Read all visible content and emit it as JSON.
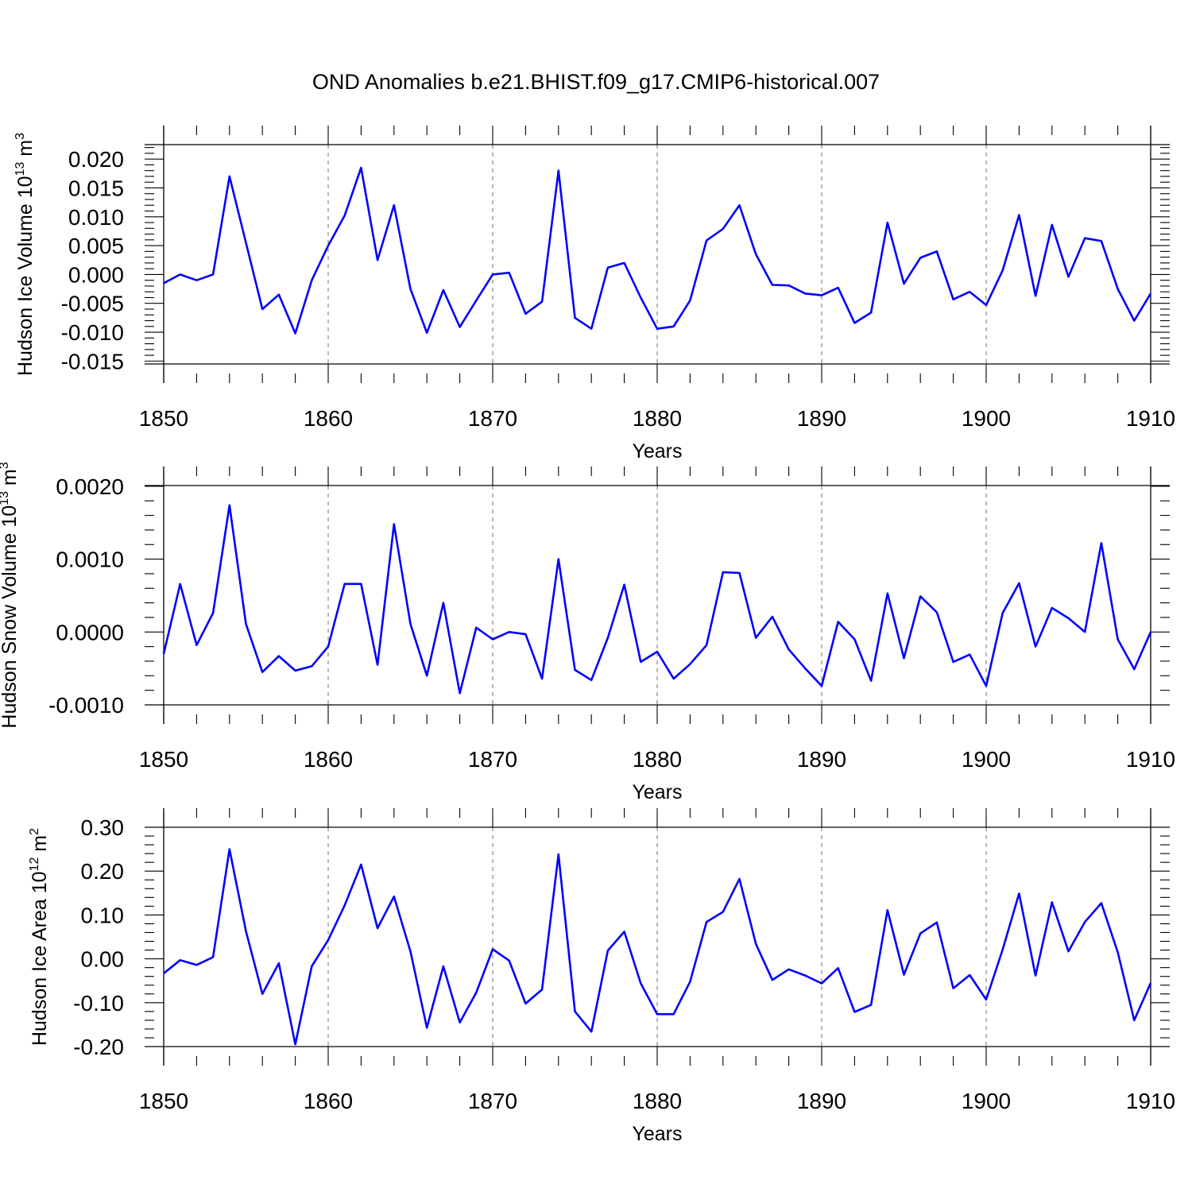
{
  "figure": {
    "title": "OND Anomalies b.e21.BHIST.f09_g17.CMIP6-historical.007",
    "line_color": "#0000ff",
    "grid_color": "#888888"
  },
  "chart_data": [
    {
      "type": "line",
      "title": "",
      "xlabel": "Years",
      "ylabel_main": "Hudson Ice Volume 10",
      "ylabel_sup": "13",
      "ylabel_unit": " m",
      "ylabel_unit_sup": "3",
      "xlim": [
        1850,
        1910
      ],
      "ylim": [
        -0.0155,
        0.0225
      ],
      "x_ticks": [
        1850,
        1860,
        1870,
        1880,
        1890,
        1900,
        1910
      ],
      "x_tick_labels": [
        "1850",
        "1860",
        "1870",
        "1880",
        "1890",
        "1900",
        "1910"
      ],
      "y_ticks": [
        0.02,
        0.015,
        0.01,
        0.005,
        0.0,
        -0.005,
        -0.01,
        -0.015
      ],
      "y_tick_labels": [
        "0.020",
        "0.015",
        "0.010",
        "0.005",
        "0.000",
        "-0.005",
        "-0.010",
        "-0.015"
      ],
      "grid": "vertical dashed at major x ticks",
      "series": [
        {
          "x_start": 1850,
          "values": [
            -0.0015,
            0.0,
            -0.001,
            0.0,
            0.017,
            0.0055,
            -0.006,
            -0.0035,
            -0.0102,
            -0.001,
            0.005,
            0.0102,
            0.0185,
            0.0025,
            0.012,
            -0.0025,
            -0.0101,
            -0.0027,
            -0.0091,
            -0.0045,
            0.0,
            0.0003,
            -0.0068,
            -0.0047,
            0.018,
            -0.0075,
            -0.0094,
            0.0012,
            0.002,
            -0.004,
            -0.0094,
            -0.009,
            -0.0045,
            0.0059,
            0.0079,
            0.012,
            0.0035,
            -0.0018,
            -0.0019,
            -0.0033,
            -0.0036,
            -0.0023,
            -0.0084,
            -0.0066,
            0.009,
            -0.0016,
            0.0029,
            0.004,
            -0.0043,
            -0.003,
            -0.0053,
            0.0007,
            0.0103,
            -0.0037,
            0.0086,
            -0.0004,
            0.0063,
            0.0058,
            -0.0025,
            -0.008,
            -0.0033
          ]
        }
      ]
    },
    {
      "type": "line",
      "title": "",
      "xlabel": "Years",
      "ylabel_main": "Hudson Snow Volume 10",
      "ylabel_sup": "13",
      "ylabel_unit": " m",
      "ylabel_unit_sup": "3",
      "xlim": [
        1850,
        1910
      ],
      "ylim": [
        -0.001,
        0.00201
      ],
      "x_ticks": [
        1850,
        1860,
        1870,
        1880,
        1890,
        1900,
        1910
      ],
      "x_tick_labels": [
        "1850",
        "1860",
        "1870",
        "1880",
        "1890",
        "1900",
        "1910"
      ],
      "y_ticks": [
        0.002,
        0.001,
        0.0,
        -0.001
      ],
      "y_tick_labels": [
        "0.0020",
        "0.0010",
        "0.0000",
        "-0.0010"
      ],
      "grid": "vertical dashed at major x ticks",
      "series": [
        {
          "x_start": 1850,
          "values": [
            -0.0003,
            0.00066,
            -0.00018,
            0.00026,
            0.00174,
            0.00011,
            -0.00055,
            -0.00033,
            -0.00053,
            -0.00047,
            -0.0002,
            0.00066,
            0.00066,
            -0.00045,
            0.00148,
            0.00011,
            -0.0006,
            0.0004,
            -0.00084,
            6e-05,
            -0.0001,
            0.0,
            -3e-05,
            -0.00064,
            0.001,
            -0.00052,
            -0.00066,
            -8e-05,
            0.00065,
            -0.00041,
            -0.00027,
            -0.00064,
            -0.00044,
            -0.00018,
            0.00082,
            0.00081,
            -8e-05,
            0.00021,
            -0.00024,
            -0.0005,
            -0.00074,
            0.00014,
            -0.0001,
            -0.00067,
            0.00053,
            -0.00036,
            0.00049,
            0.00027,
            -0.00041,
            -0.00031,
            -0.00074,
            0.00026,
            0.00067,
            -0.0002,
            0.00033,
            0.00019,
            0.0,
            0.00122,
            -0.0001,
            -0.00051,
            0.0
          ]
        }
      ]
    },
    {
      "type": "line",
      "title": "",
      "xlabel": "Years",
      "ylabel_main": "Hudson Ice Area 10",
      "ylabel_sup": "12",
      "ylabel_unit": " m",
      "ylabel_unit_sup": "2",
      "xlim": [
        1850,
        1910
      ],
      "ylim": [
        -0.2,
        0.3
      ],
      "x_ticks": [
        1850,
        1860,
        1870,
        1880,
        1890,
        1900,
        1910
      ],
      "x_tick_labels": [
        "1850",
        "1860",
        "1870",
        "1880",
        "1890",
        "1900",
        "1910"
      ],
      "y_ticks": [
        0.3,
        0.2,
        0.1,
        0.0,
        -0.1,
        -0.2
      ],
      "y_tick_labels": [
        "0.30",
        "0.20",
        "0.10",
        "0.00",
        "-0.10",
        "-0.20"
      ],
      "grid": "vertical dashed at major x ticks",
      "series": [
        {
          "x_start": 1850,
          "values": [
            -0.033,
            -0.003,
            -0.014,
            0.004,
            0.25,
            0.063,
            -0.08,
            -0.01,
            -0.195,
            -0.017,
            0.043,
            0.122,
            0.215,
            0.07,
            0.142,
            0.017,
            -0.157,
            -0.017,
            -0.145,
            -0.077,
            0.022,
            -0.004,
            -0.102,
            -0.07,
            0.238,
            -0.12,
            -0.166,
            0.019,
            0.062,
            -0.056,
            -0.126,
            -0.126,
            -0.052,
            0.084,
            0.107,
            0.182,
            0.034,
            -0.048,
            -0.024,
            -0.038,
            -0.056,
            -0.021,
            -0.121,
            -0.105,
            0.111,
            -0.036,
            0.058,
            0.083,
            -0.067,
            -0.037,
            -0.093,
            0.021,
            0.149,
            -0.038,
            0.129,
            0.017,
            0.084,
            0.127,
            0.015,
            -0.14,
            -0.055
          ]
        }
      ]
    }
  ]
}
